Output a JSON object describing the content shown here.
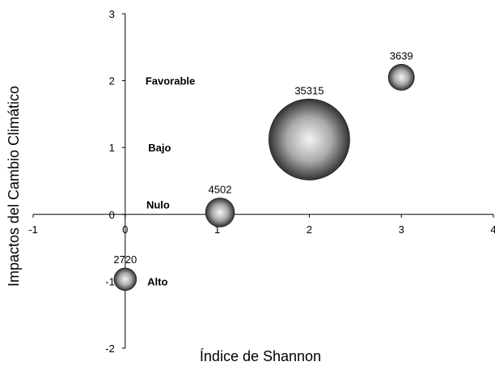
{
  "chart_data": {
    "type": "bubble",
    "xlabel": "Índice de Shannon",
    "ylabel": "Impactos del Cambio Climático",
    "xlim": [
      -1,
      4
    ],
    "ylim": [
      -2,
      3
    ],
    "x_ticks": [
      "-1",
      "0",
      "1",
      "2",
      "3",
      "4"
    ],
    "y_ticks": [
      "-2",
      "-1",
      "0",
      "1",
      "2",
      "3"
    ],
    "grid": false,
    "points": [
      {
        "x": 0.0,
        "y": -0.97,
        "size": 2720,
        "label": "2720"
      },
      {
        "x": 1.03,
        "y": 0.03,
        "size": 4502,
        "label": "4502"
      },
      {
        "x": 2.0,
        "y": 1.12,
        "size": 35315,
        "label": "35315"
      },
      {
        "x": 3.0,
        "y": 2.05,
        "size": 3639,
        "label": "3639"
      }
    ],
    "annotations": [
      {
        "text": "Favorable",
        "x": 0.22,
        "y": 2.0
      },
      {
        "text": "Bajo",
        "x": 0.25,
        "y": 1.0
      },
      {
        "text": "Nulo",
        "x": 0.23,
        "y": 0.15
      },
      {
        "text": "Alto",
        "x": 0.24,
        "y": -1.0
      }
    ]
  }
}
